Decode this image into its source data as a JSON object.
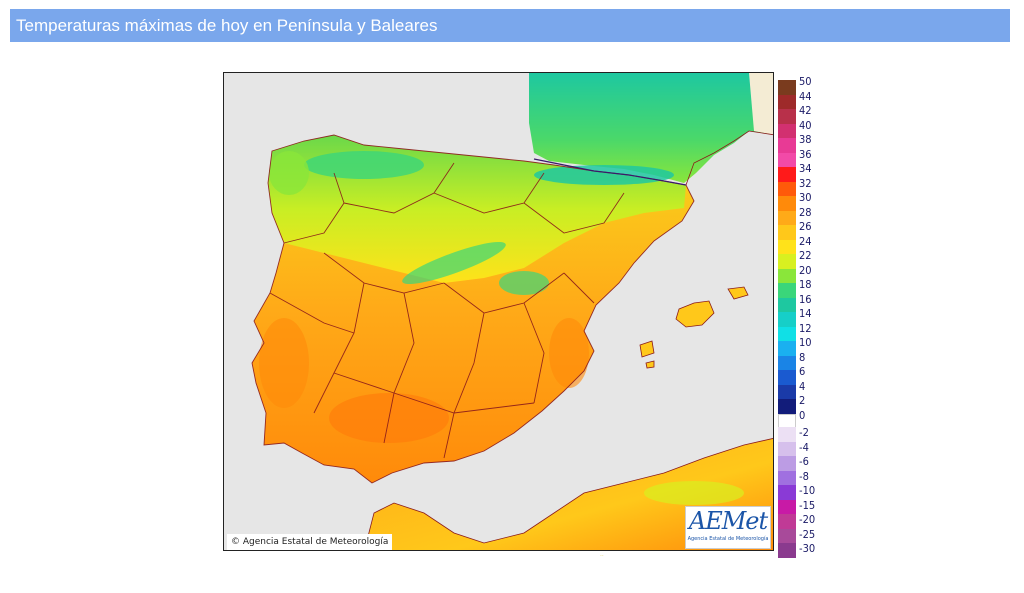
{
  "page": {
    "title": "Temperaturas máximas de hoy en Península y Baleares"
  },
  "map": {
    "copyright": "Agencia Estatal de Meteorología",
    "logo": {
      "text": "AEMet",
      "subtitle": "Agencia Estatal de Meteorología"
    },
    "colors": {
      "sea": "#e6e6e6",
      "land_warm": "#f5a623",
      "land_mild": "#f8e71c",
      "land_cool": "#7ed321",
      "land_cold": "#50e3c2",
      "border": "#8b1a1a"
    }
  },
  "legend": {
    "positive": [
      {
        "value": "50",
        "color": "#7a3b1e"
      },
      {
        "value": "44",
        "color": "#9e2a2a"
      },
      {
        "value": "42",
        "color": "#b8304a"
      },
      {
        "value": "40",
        "color": "#d23070"
      },
      {
        "value": "38",
        "color": "#e83a95"
      },
      {
        "value": "36",
        "color": "#f24aa8"
      },
      {
        "value": "34",
        "color": "#ff1a1a"
      },
      {
        "value": "32",
        "color": "#ff5a0a"
      },
      {
        "value": "30",
        "color": "#ff8a0a"
      },
      {
        "value": "28",
        "color": "#ffaa18"
      },
      {
        "value": "26",
        "color": "#ffc81a"
      },
      {
        "value": "24",
        "color": "#ffe21a"
      },
      {
        "value": "22",
        "color": "#d8f020"
      },
      {
        "value": "20",
        "color": "#8ae63a"
      },
      {
        "value": "18",
        "color": "#3ad67a"
      },
      {
        "value": "16",
        "color": "#1ec8a0"
      },
      {
        "value": "14",
        "color": "#16cfc8"
      },
      {
        "value": "12",
        "color": "#10e0e6"
      },
      {
        "value": "10",
        "color": "#1ab0f0"
      },
      {
        "value": "8",
        "color": "#1a84e6"
      },
      {
        "value": "6",
        "color": "#1a5ad0"
      },
      {
        "value": "4",
        "color": "#1a3aa8"
      },
      {
        "value": "2",
        "color": "#121c7a"
      },
      {
        "value": "0",
        "color": "#ffffff"
      }
    ],
    "negative": [
      {
        "value": "-2",
        "color": "#ece0f4"
      },
      {
        "value": "-4",
        "color": "#d6c0ec"
      },
      {
        "value": "-6",
        "color": "#bc9ce4"
      },
      {
        "value": "-8",
        "color": "#a070e0"
      },
      {
        "value": "-10",
        "color": "#8a3ad6"
      },
      {
        "value": "-15",
        "color": "#c81aa6"
      },
      {
        "value": "-20",
        "color": "#c03a96"
      },
      {
        "value": "-25",
        "color": "#a84a9a"
      },
      {
        "value": "-30",
        "color": "#8a3a8e"
      }
    ]
  }
}
